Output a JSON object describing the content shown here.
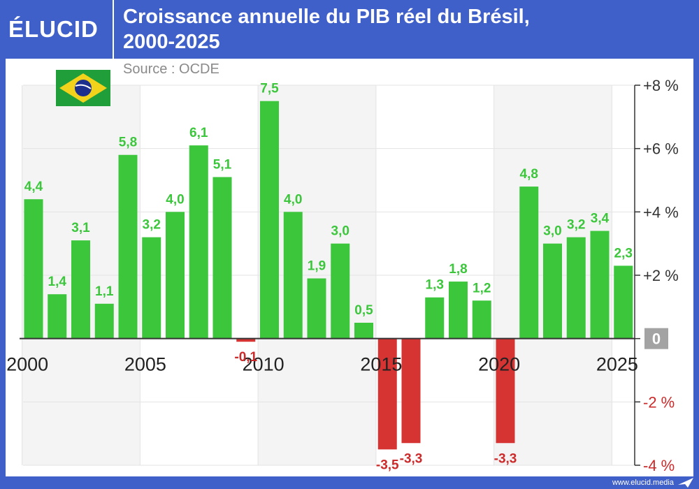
{
  "header": {
    "logo": "ÉLUCID",
    "title_line1": "Croissance annuelle du PIB réel du Brésil,",
    "title_line2": "2000-2025"
  },
  "source": "Source : OCDE",
  "footer": {
    "site": "www.elucid.media"
  },
  "colors": {
    "positive": "#3cc63c",
    "negative": "#d63333",
    "header": "#3f5fc9",
    "positive_label": "#3cc63c",
    "negative_label": "#cc2a2a"
  },
  "icons": {
    "flag": "brazil-flag-icon",
    "footer": "elucid-plane-icon"
  },
  "chart_data": {
    "type": "bar",
    "title": "Croissance annuelle du PIB réel du Brésil, 2000-2025",
    "categories": [
      2000,
      2001,
      2002,
      2003,
      2004,
      2005,
      2006,
      2007,
      2008,
      2009,
      2010,
      2011,
      2012,
      2013,
      2014,
      2015,
      2016,
      2017,
      2018,
      2019,
      2020,
      2021,
      2022,
      2023,
      2024,
      2025
    ],
    "values": [
      4.4,
      1.4,
      3.1,
      1.1,
      5.8,
      3.2,
      4.0,
      6.1,
      5.1,
      -0.1,
      7.5,
      4.0,
      1.9,
      3.0,
      0.5,
      -3.5,
      -3.3,
      1.3,
      1.8,
      1.2,
      -3.3,
      4.8,
      3.0,
      3.2,
      3.4,
      2.3
    ],
    "value_labels": [
      "4,4",
      "1,4",
      "3,1",
      "1,1",
      "5,8",
      "3,2",
      "4,0",
      "6,1",
      "5,1",
      "-0,1",
      "7,5",
      "4,0",
      "1,9",
      "3,0",
      "0,5",
      "-3,5",
      "-3,3",
      "1,3",
      "1,8",
      "1,2",
      "-3,3",
      "4,8",
      "3,0",
      "3,2",
      "3,4",
      "2,3"
    ],
    "x_ticks": [
      {
        "year": 2000,
        "label": "2000"
      },
      {
        "year": 2005,
        "label": "2005"
      },
      {
        "year": 2010,
        "label": "2010"
      },
      {
        "year": 2015,
        "label": "2015"
      },
      {
        "year": 2020,
        "label": "2020"
      },
      {
        "year": 2025,
        "label": "2025"
      }
    ],
    "y_ticks": [
      {
        "value": 8,
        "label": "+8 %"
      },
      {
        "value": 6,
        "label": "+6 %"
      },
      {
        "value": 4,
        "label": "+4 %"
      },
      {
        "value": 2,
        "label": "+2 %"
      },
      {
        "value": 0,
        "label": "0"
      },
      {
        "value": -2,
        "label": "-2 %"
      },
      {
        "value": -4,
        "label": "-4 %"
      }
    ],
    "ylim": [
      -4,
      8
    ],
    "grid": true,
    "shaded_periods": [
      [
        2000,
        2004
      ],
      [
        2010,
        2014
      ],
      [
        2020,
        2024
      ]
    ],
    "y_axis_position": "right"
  }
}
